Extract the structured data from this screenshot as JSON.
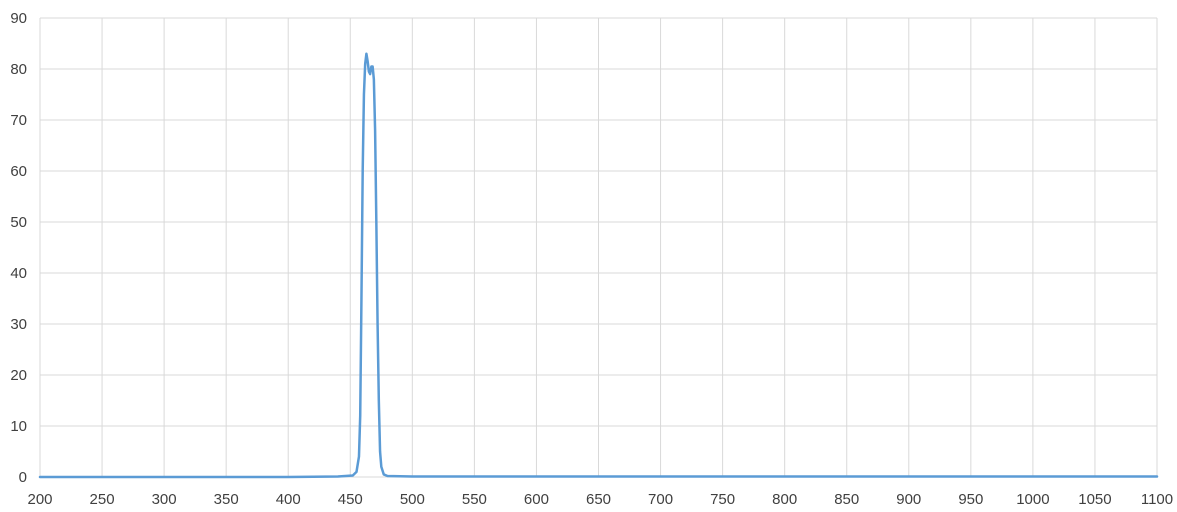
{
  "chart_data": {
    "type": "line",
    "title": "",
    "xlabel": "",
    "ylabel": "",
    "xlim": [
      200,
      1100
    ],
    "ylim": [
      0,
      90
    ],
    "x_ticks": [
      "200",
      "250",
      "300",
      "350",
      "400",
      "450",
      "500",
      "550",
      "600",
      "650",
      "700",
      "750",
      "800",
      "850",
      "900",
      "950",
      "1000",
      "1050",
      "1100"
    ],
    "y_ticks": [
      "0",
      "10",
      "20",
      "30",
      "40",
      "50",
      "60",
      "70",
      "80",
      "90"
    ],
    "grid": true,
    "legend": "none",
    "series": [
      {
        "color": "#5b9bd5",
        "x": [
          200,
          300,
          400,
          440,
          452,
          455,
          457,
          458,
          459,
          460,
          461,
          462,
          463,
          464,
          465,
          466,
          467,
          468,
          469,
          470,
          471,
          472,
          473,
          474,
          475,
          477,
          480,
          500,
          600,
          700,
          800,
          900,
          1000,
          1100
        ],
        "y": [
          0,
          0,
          0,
          0.1,
          0.3,
          1,
          4,
          12,
          35,
          60,
          75,
          81,
          83,
          81.5,
          79.5,
          79,
          80.5,
          80.5,
          78,
          68,
          50,
          30,
          15,
          5,
          2,
          0.5,
          0.2,
          0.1,
          0.1,
          0.1,
          0.1,
          0.1,
          0.1,
          0.1
        ]
      }
    ]
  }
}
